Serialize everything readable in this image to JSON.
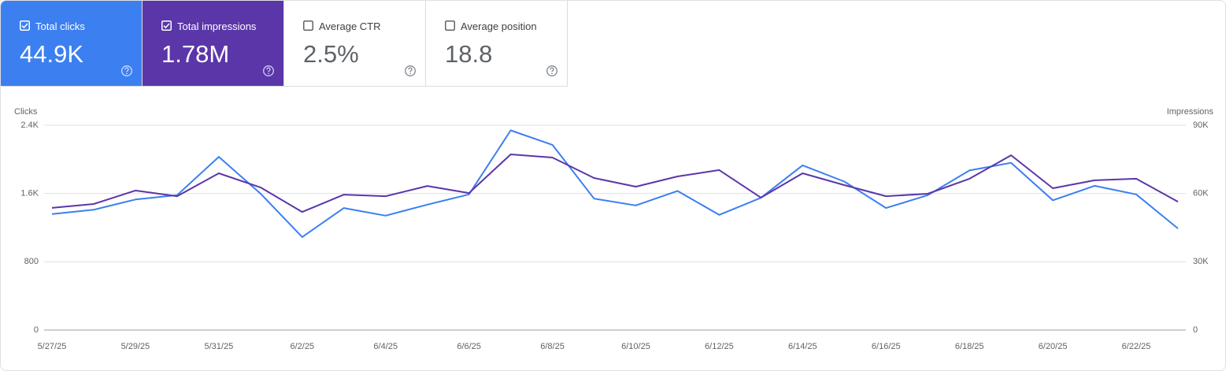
{
  "metrics": [
    {
      "label": "Total clicks",
      "value": "44.9K",
      "selected": true,
      "color": "#3c7ff0"
    },
    {
      "label": "Total impressions",
      "value": "1.78M",
      "selected": true,
      "color": "#5b36a9"
    },
    {
      "label": "Average CTR",
      "value": "2.5%",
      "selected": false,
      "color": "#ffffff"
    },
    {
      "label": "Average position",
      "value": "18.8",
      "selected": false,
      "color": "#ffffff"
    }
  ],
  "chart_data": {
    "type": "line",
    "y_label": "Clicks",
    "y2_label": "Impressions",
    "categories": [
      "5/27/25",
      null,
      "5/29/25",
      null,
      "5/31/25",
      null,
      "6/2/25",
      null,
      "6/4/25",
      null,
      "6/6/25",
      null,
      "6/8/25",
      null,
      "6/10/25",
      null,
      "6/12/25",
      null,
      "6/14/25",
      null,
      "6/16/25",
      null,
      "6/18/25",
      null,
      "6/20/25",
      null,
      "6/22/25",
      null
    ],
    "series": [
      {
        "color": "#3c7ff0",
        "axis": "y",
        "values": [
          1360,
          1410,
          1530,
          1580,
          2030,
          1600,
          1090,
          1430,
          1340,
          1470,
          1590,
          2340,
          2170,
          1540,
          1460,
          1630,
          1350,
          1550,
          1930,
          1740,
          1430,
          1580,
          1870,
          1960,
          1520,
          1690,
          1590,
          1190
        ]
      },
      {
        "color": "#5b36a9",
        "axis": "y2",
        "values": [
          53700,
          55400,
          61300,
          58800,
          68900,
          62700,
          51900,
          59500,
          58800,
          63300,
          60200,
          77200,
          75800,
          66800,
          63000,
          67500,
          70300,
          58200,
          68900,
          63700,
          58800,
          59900,
          66500,
          76800,
          62300,
          65800,
          66500,
          56400
        ]
      }
    ],
    "ylim": [
      0,
      2400
    ],
    "yticks": [
      0,
      800,
      {
        "value": 1600,
        "label": "1.6K"
      },
      {
        "value": 2400,
        "label": "2.4K"
      }
    ],
    "y2lim": [
      0,
      90000
    ],
    "y2ticks": [
      0,
      {
        "value": 30000,
        "label": "30K"
      },
      {
        "value": 60000,
        "label": "60K"
      },
      {
        "value": 90000,
        "label": "90K"
      }
    ],
    "grid": true
  }
}
